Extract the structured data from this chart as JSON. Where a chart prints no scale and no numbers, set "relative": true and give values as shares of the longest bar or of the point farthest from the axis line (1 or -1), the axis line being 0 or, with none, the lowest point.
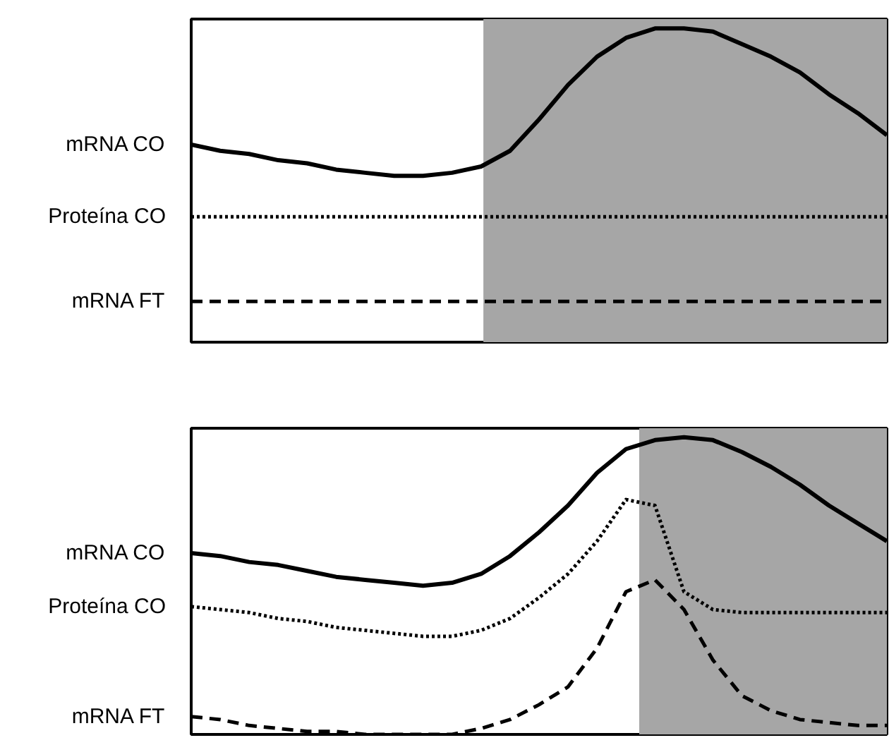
{
  "chart_data": [
    {
      "type": "line",
      "relative": true,
      "tick_labels": false,
      "legend": false,
      "categories": [
        null,
        null,
        null,
        null,
        null,
        null,
        null,
        null,
        null,
        null,
        null,
        null,
        null,
        null,
        null,
        null,
        null,
        null,
        null,
        null,
        null,
        null,
        null,
        null,
        null
      ],
      "series": [
        {
          "name": "mRNA CO",
          "color": "#000000",
          "line_style": "solid",
          "values": [
            0.63,
            0.61,
            0.6,
            0.58,
            0.57,
            0.55,
            0.54,
            0.53,
            0.53,
            0.54,
            0.56,
            0.61,
            0.71,
            0.82,
            0.91,
            0.97,
            1.0,
            1.0,
            0.99,
            0.95,
            0.91,
            0.86,
            0.79,
            0.73,
            0.66
          ]
        },
        {
          "name": "Proteína CO",
          "color": "#000000",
          "line_style": "dotted",
          "values": [
            0.4,
            0.4,
            0.4,
            0.4,
            0.4,
            0.4,
            0.4,
            0.4,
            0.4,
            0.4,
            0.4,
            0.4,
            0.4,
            0.4,
            0.4,
            0.4,
            0.4,
            0.4,
            0.4,
            0.4,
            0.4,
            0.4,
            0.4,
            0.4,
            0.4
          ]
        },
        {
          "name": "mRNA FT",
          "color": "#000000",
          "line_style": "dashed",
          "values": [
            0.13,
            0.13,
            0.13,
            0.13,
            0.13,
            0.13,
            0.13,
            0.13,
            0.13,
            0.13,
            0.13,
            0.13,
            0.13,
            0.13,
            0.13,
            0.13,
            0.13,
            0.13,
            0.13,
            0.13,
            0.13,
            0.13,
            0.13,
            0.13,
            0.13
          ]
        }
      ]
    },
    {
      "type": "line",
      "relative": true,
      "tick_labels": false,
      "legend": false,
      "categories": [
        null,
        null,
        null,
        null,
        null,
        null,
        null,
        null,
        null,
        null,
        null,
        null,
        null,
        null,
        null,
        null,
        null,
        null,
        null,
        null,
        null,
        null,
        null,
        null,
        null
      ],
      "series": [
        {
          "name": "mRNA CO",
          "color": "#000000",
          "line_style": "solid",
          "values": [
            0.61,
            0.6,
            0.58,
            0.57,
            0.55,
            0.53,
            0.52,
            0.51,
            0.5,
            0.51,
            0.54,
            0.6,
            0.68,
            0.77,
            0.88,
            0.96,
            0.99,
            1.0,
            0.99,
            0.95,
            0.9,
            0.84,
            0.77,
            0.71,
            0.65
          ]
        },
        {
          "name": "Proteína CO",
          "color": "#000000",
          "line_style": "dotted",
          "values": [
            0.43,
            0.42,
            0.41,
            0.39,
            0.38,
            0.36,
            0.35,
            0.34,
            0.33,
            0.33,
            0.35,
            0.39,
            0.46,
            0.54,
            0.65,
            0.79,
            0.77,
            0.48,
            0.42,
            0.41,
            0.41,
            0.41,
            0.41,
            0.41,
            0.41
          ]
        },
        {
          "name": "mRNA FT",
          "color": "#000000",
          "line_style": "dashed",
          "values": [
            0.06,
            0.05,
            0.03,
            0.02,
            0.01,
            0.01,
            0,
            0,
            0,
            0,
            0.02,
            0.05,
            0.1,
            0.16,
            0.29,
            0.48,
            0.52,
            0.42,
            0.25,
            0.13,
            0.08,
            0.05,
            0.04,
            0.03,
            0.03
          ]
        }
      ]
    }
  ]
}
